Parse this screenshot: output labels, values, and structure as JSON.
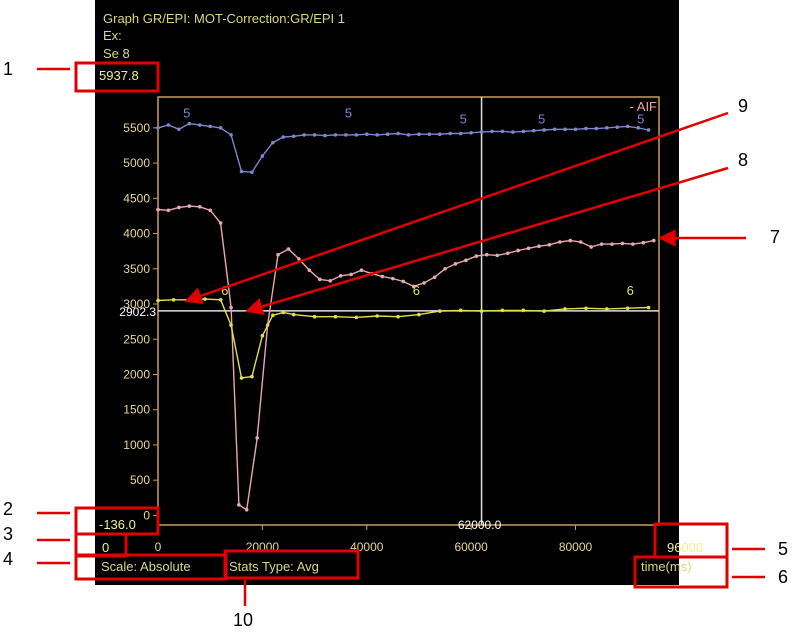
{
  "header": {
    "graph_title": "Graph GR/EPI: MOT-Correction:GR/EPI 1",
    "line_ex": "Ex:",
    "line_se": "Se 8",
    "ymax_readout": "5937.8"
  },
  "footer": {
    "ymin_readout": "-136.0",
    "xmin_readout": "0",
    "xmax_readout": "96000",
    "scale_label": "Scale: Absolute",
    "stats_label": "Stats Type: Avg",
    "time_label": "time(ms)"
  },
  "crosshair": {
    "x_value": 62000,
    "x_label": "62000.0",
    "y_value": 2902.3,
    "y_label": "2902.3"
  },
  "callouts": [
    "1",
    "2",
    "3",
    "4",
    "5",
    "6",
    "7",
    "8",
    "9",
    "10"
  ],
  "colors": {
    "frame": "#c8a050",
    "tick_text": "#e8d890",
    "series_blue": "#7f86d0",
    "series_pink": "#e8a8b0",
    "series_yellow": "#e0e048",
    "crosshair": "#e0e0e0",
    "callout_box": "#e00000"
  },
  "chart_data": {
    "type": "line",
    "title": "",
    "xlabel": "time(ms)",
    "ylabel": "",
    "xlim": [
      0,
      96000
    ],
    "ylim": [
      -136,
      5937.8
    ],
    "x_ticks": [
      0,
      20000,
      40000,
      60000,
      80000
    ],
    "x_tick_labels": [
      "0",
      "20000",
      "40000",
      "60000",
      "80000"
    ],
    "y_ticks": [
      0,
      500,
      1000,
      1500,
      2000,
      2500,
      3000,
      3500,
      4000,
      4500,
      5000,
      5500
    ],
    "y_tick_labels": [
      "0",
      "500",
      "1000",
      "1500",
      "2000",
      "2500",
      "3000",
      "3500",
      "4000",
      "4500",
      "5000",
      "5500"
    ],
    "legend": [
      {
        "label": "- AIF",
        "position": "top-right"
      }
    ],
    "series": [
      {
        "marker_label": "5",
        "label_positions": [
          {
            "x": 5500,
            "y": 5650
          },
          {
            "x": 36500,
            "y": 5650
          },
          {
            "x": 58500,
            "y": 5560
          },
          {
            "x": 73500,
            "y": 5560
          },
          {
            "x": 92500,
            "y": 5560
          }
        ],
        "points": [
          [
            0,
            5500
          ],
          [
            2000,
            5540
          ],
          [
            4000,
            5480
          ],
          [
            6000,
            5560
          ],
          [
            8000,
            5540
          ],
          [
            10000,
            5520
          ],
          [
            12000,
            5500
          ],
          [
            14000,
            5400
          ],
          [
            16000,
            4880
          ],
          [
            18000,
            4870
          ],
          [
            20000,
            5100
          ],
          [
            22000,
            5290
          ],
          [
            24000,
            5370
          ],
          [
            26000,
            5380
          ],
          [
            28000,
            5400
          ],
          [
            30000,
            5400
          ],
          [
            32000,
            5390
          ],
          [
            34000,
            5400
          ],
          [
            36000,
            5400
          ],
          [
            38000,
            5400
          ],
          [
            40000,
            5410
          ],
          [
            42000,
            5400
          ],
          [
            44000,
            5410
          ],
          [
            46000,
            5420
          ],
          [
            48000,
            5400
          ],
          [
            50000,
            5410
          ],
          [
            52000,
            5410
          ],
          [
            54000,
            5410
          ],
          [
            56000,
            5420
          ],
          [
            58000,
            5420
          ],
          [
            60000,
            5430
          ],
          [
            62000,
            5440
          ],
          [
            64000,
            5450
          ],
          [
            66000,
            5450
          ],
          [
            68000,
            5440
          ],
          [
            70000,
            5450
          ],
          [
            72000,
            5460
          ],
          [
            74000,
            5470
          ],
          [
            76000,
            5480
          ],
          [
            78000,
            5480
          ],
          [
            80000,
            5480
          ],
          [
            82000,
            5490
          ],
          [
            84000,
            5490
          ],
          [
            86000,
            5500
          ],
          [
            88000,
            5510
          ],
          [
            90000,
            5520
          ],
          [
            92000,
            5500
          ],
          [
            94000,
            5470
          ]
        ]
      },
      {
        "marker_label": "",
        "label_positions": [],
        "points": [
          [
            0,
            4340
          ],
          [
            2000,
            4330
          ],
          [
            4000,
            4370
          ],
          [
            6000,
            4390
          ],
          [
            8000,
            4380
          ],
          [
            10000,
            4330
          ],
          [
            12000,
            4150
          ],
          [
            14000,
            2950
          ],
          [
            15500,
            150
          ],
          [
            17000,
            80
          ],
          [
            19000,
            1100
          ],
          [
            21000,
            2700
          ],
          [
            23000,
            3700
          ],
          [
            25000,
            3780
          ],
          [
            27000,
            3640
          ],
          [
            29000,
            3480
          ],
          [
            31000,
            3350
          ],
          [
            33000,
            3330
          ],
          [
            35000,
            3400
          ],
          [
            37000,
            3420
          ],
          [
            39000,
            3480
          ],
          [
            41000,
            3430
          ],
          [
            43000,
            3390
          ],
          [
            45000,
            3360
          ],
          [
            47000,
            3320
          ],
          [
            49000,
            3250
          ],
          [
            51000,
            3300
          ],
          [
            53000,
            3380
          ],
          [
            55000,
            3500
          ],
          [
            57000,
            3570
          ],
          [
            59000,
            3620
          ],
          [
            61000,
            3680
          ],
          [
            63000,
            3700
          ],
          [
            65000,
            3690
          ],
          [
            67000,
            3720
          ],
          [
            69000,
            3760
          ],
          [
            71000,
            3790
          ],
          [
            73000,
            3820
          ],
          [
            75000,
            3840
          ],
          [
            77000,
            3880
          ],
          [
            79000,
            3900
          ],
          [
            81000,
            3880
          ],
          [
            83000,
            3810
          ],
          [
            85000,
            3850
          ],
          [
            87000,
            3850
          ],
          [
            89000,
            3860
          ],
          [
            91000,
            3850
          ],
          [
            93000,
            3870
          ],
          [
            95000,
            3900
          ]
        ]
      },
      {
        "marker_label": "6",
        "label_positions": [
          {
            "x": 12800,
            "y": 3130
          },
          {
            "x": 49500,
            "y": 3130
          },
          {
            "x": 90500,
            "y": 3130
          }
        ],
        "points": [
          [
            0,
            3050
          ],
          [
            3000,
            3060
          ],
          [
            6000,
            3060
          ],
          [
            9000,
            3070
          ],
          [
            12000,
            3060
          ],
          [
            14000,
            2700
          ],
          [
            16000,
            1950
          ],
          [
            18000,
            1970
          ],
          [
            20000,
            2550
          ],
          [
            22000,
            2840
          ],
          [
            24000,
            2880
          ],
          [
            26000,
            2850
          ],
          [
            30000,
            2820
          ],
          [
            34000,
            2820
          ],
          [
            38000,
            2810
          ],
          [
            42000,
            2830
          ],
          [
            46000,
            2820
          ],
          [
            50000,
            2850
          ],
          [
            54000,
            2900
          ],
          [
            58000,
            2910
          ],
          [
            62000,
            2900
          ],
          [
            66000,
            2910
          ],
          [
            70000,
            2910
          ],
          [
            74000,
            2900
          ],
          [
            78000,
            2930
          ],
          [
            82000,
            2940
          ],
          [
            86000,
            2930
          ],
          [
            90000,
            2940
          ],
          [
            94000,
            2950
          ]
        ]
      }
    ]
  }
}
